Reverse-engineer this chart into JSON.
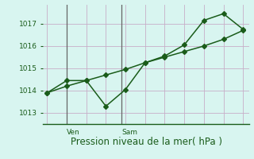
{
  "line1_x": [
    0,
    1,
    2,
    3,
    4,
    5,
    6,
    7,
    8,
    9,
    10
  ],
  "line1_y": [
    1013.9,
    1014.2,
    1014.45,
    1014.7,
    1014.95,
    1015.25,
    1015.5,
    1015.75,
    1016.0,
    1016.3,
    1016.7
  ],
  "line2_x": [
    0,
    1,
    2,
    3,
    4,
    5,
    6,
    7,
    8,
    9,
    10
  ],
  "line2_y": [
    1013.9,
    1014.45,
    1014.45,
    1013.3,
    1014.05,
    1015.25,
    1015.55,
    1016.05,
    1017.15,
    1017.45,
    1016.75
  ],
  "line_color": "#1a5c1a",
  "marker": "D",
  "markersize": 3.0,
  "linewidth": 1.1,
  "xlabel": "Pression niveau de la mer( hPa )",
  "xlabel_fontsize": 8.5,
  "yticks": [
    1013,
    1014,
    1015,
    1016,
    1017
  ],
  "ylim": [
    1012.5,
    1017.85
  ],
  "xlim": [
    -0.2,
    10.3
  ],
  "xtick_labels": [
    "Ven",
    "Sam"
  ],
  "vline_x": [
    1.0,
    3.8
  ],
  "xtick_label_x": [
    1.0,
    3.8
  ],
  "bg_color": "#d8f5f0",
  "grid_color": "#c8aec8",
  "grid_linewidth": 0.6,
  "ylabel_color": "#1a5c1a",
  "vline_color": "#666666",
  "vline_lw": 0.9
}
